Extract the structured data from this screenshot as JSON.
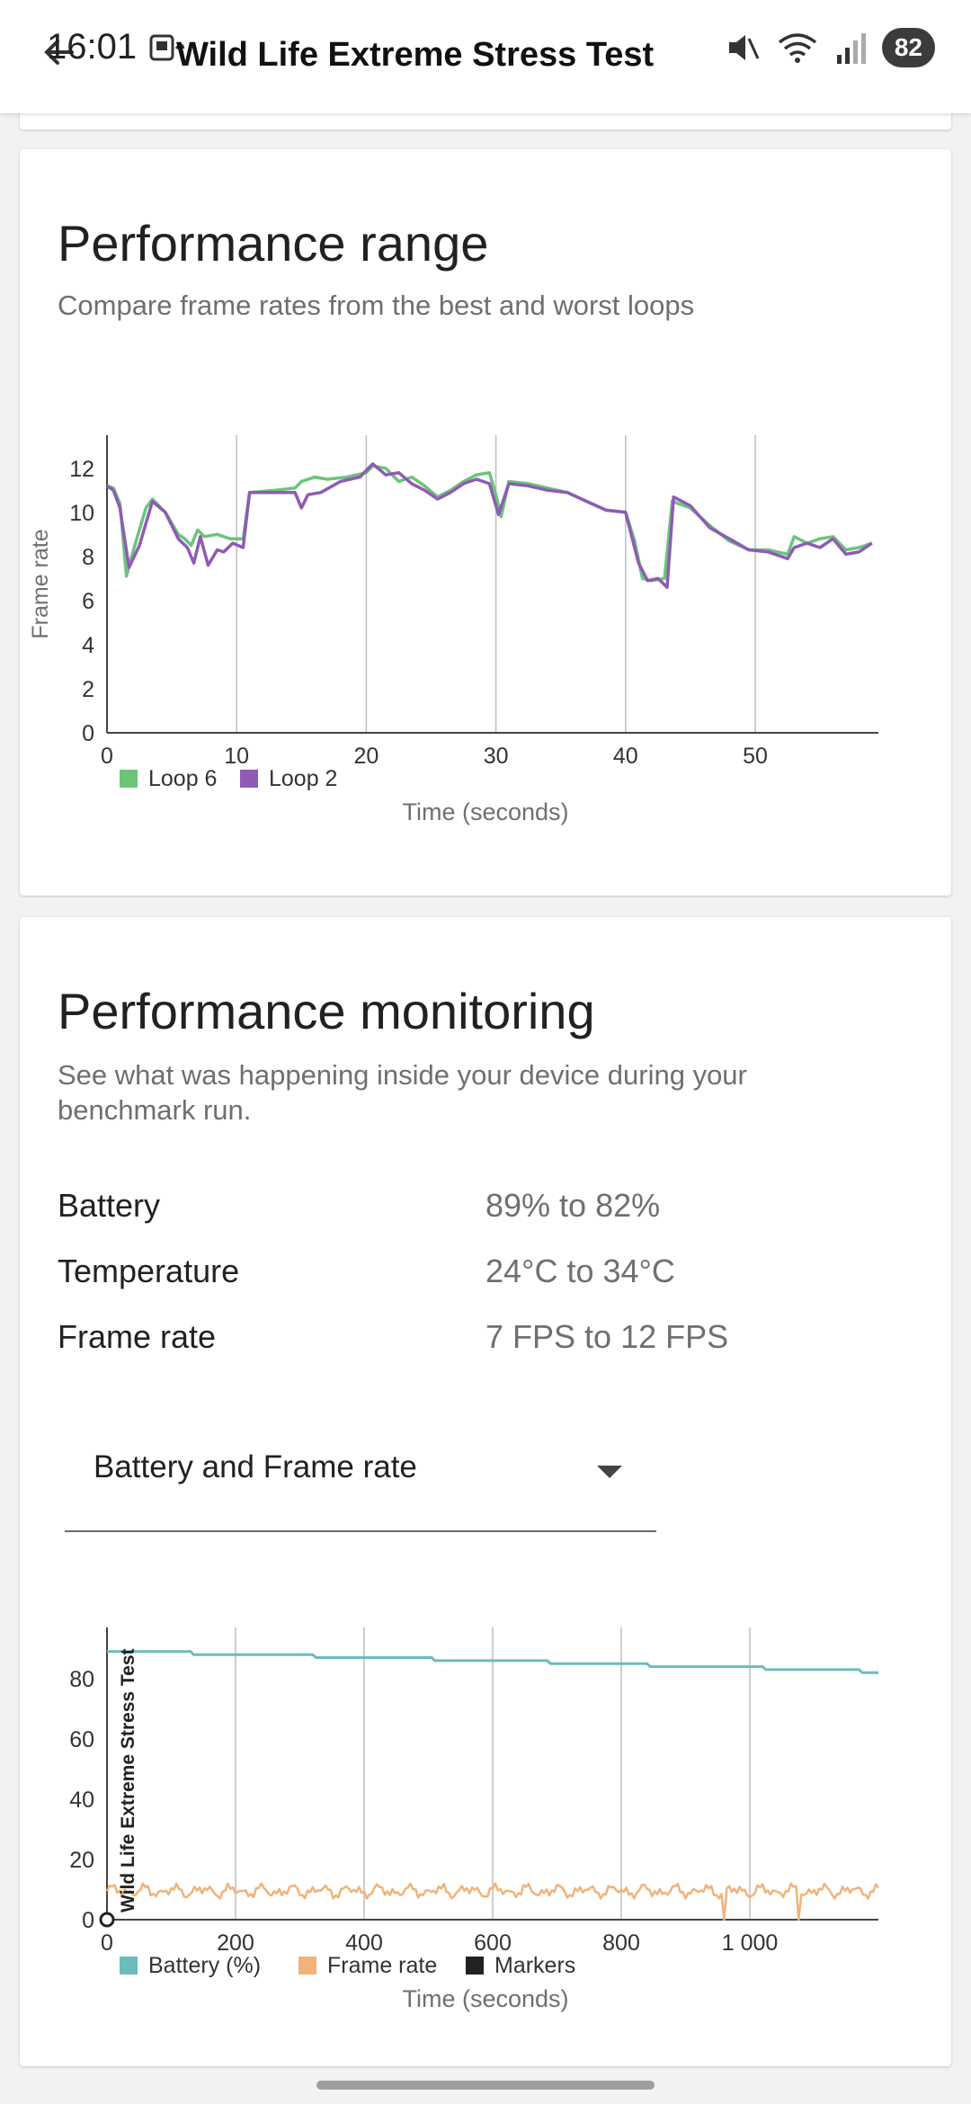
{
  "status_bar": {
    "time": "16:01",
    "battery": "82"
  },
  "app_bar": {
    "title": "Wild Life Extreme Stress Test"
  },
  "performance_range": {
    "title": "Performance range",
    "subtitle": "Compare frame rates from the best and worst loops"
  },
  "performance_monitoring": {
    "title": "Performance monitoring",
    "subtitle": "See what was happening inside your device during your benchmark run.",
    "stats": [
      {
        "label": "Battery",
        "value": "89% to 82%"
      },
      {
        "label": "Temperature",
        "value": "24°C to 34°C"
      },
      {
        "label": "Frame rate",
        "value": "7 FPS to 12 FPS"
      }
    ],
    "dropdown": {
      "selected": "Battery and Frame rate"
    }
  },
  "chart_data": [
    {
      "type": "line",
      "title": "",
      "xlabel": "Time (seconds)",
      "ylabel": "Frame rate",
      "xlim": [
        0,
        59.5
      ],
      "ylim": [
        0,
        13.5
      ],
      "x_ticks": [
        0,
        10,
        20,
        30,
        40,
        50
      ],
      "y_ticks": [
        0,
        2,
        4,
        6,
        8,
        10,
        12
      ],
      "grid": "vertical",
      "legend": "bottom-left",
      "series": [
        {
          "name": "Loop 6",
          "color": "#6cc47b",
          "points": [
            [
              0,
              11.2
            ],
            [
              0.5,
              11.1
            ],
            [
              1,
              10.4
            ],
            [
              1.5,
              7.1
            ],
            [
              2,
              8.2
            ],
            [
              3,
              10.2
            ],
            [
              3.5,
              10.6
            ],
            [
              4.5,
              10.0
            ],
            [
              5.5,
              9.0
            ],
            [
              6,
              8.8
            ],
            [
              6.5,
              8.5
            ],
            [
              7,
              9.2
            ],
            [
              7.5,
              8.9
            ],
            [
              8.5,
              9.0
            ],
            [
              9.5,
              8.8
            ],
            [
              10.5,
              8.8
            ],
            [
              11,
              10.9
            ],
            [
              13,
              11.0
            ],
            [
              14.5,
              11.1
            ],
            [
              15,
              11.4
            ],
            [
              16,
              11.6
            ],
            [
              17,
              11.5
            ],
            [
              18.5,
              11.6
            ],
            [
              20,
              11.8
            ],
            [
              20.5,
              12.1
            ],
            [
              21.5,
              12.0
            ],
            [
              22.5,
              11.4
            ],
            [
              23.5,
              11.6
            ],
            [
              24.5,
              11.2
            ],
            [
              25.5,
              10.7
            ],
            [
              26.5,
              11.0
            ],
            [
              27.5,
              11.4
            ],
            [
              28.5,
              11.7
            ],
            [
              29.5,
              11.8
            ],
            [
              30,
              10.8
            ],
            [
              30.4,
              9.8
            ],
            [
              31,
              11.4
            ],
            [
              32.5,
              11.3
            ],
            [
              34,
              11.1
            ],
            [
              35.5,
              10.9
            ],
            [
              37,
              10.5
            ],
            [
              38.5,
              10.1
            ],
            [
              40,
              10.0
            ],
            [
              40.7,
              8.7
            ],
            [
              41.3,
              7.0
            ],
            [
              42,
              6.9
            ],
            [
              43,
              7.0
            ],
            [
              43.6,
              10.5
            ],
            [
              45,
              10.2
            ],
            [
              46.5,
              9.4
            ],
            [
              48,
              8.7
            ],
            [
              49.5,
              8.3
            ],
            [
              51,
              8.3
            ],
            [
              52.5,
              8.1
            ],
            [
              53,
              8.9
            ],
            [
              54,
              8.6
            ],
            [
              55,
              8.8
            ],
            [
              56,
              8.9
            ],
            [
              57,
              8.3
            ],
            [
              58,
              8.4
            ],
            [
              59,
              8.6
            ]
          ]
        },
        {
          "name": "Loop 2",
          "color": "#8e5bb5",
          "points": [
            [
              0,
              11.2
            ],
            [
              0.5,
              11.0
            ],
            [
              1,
              10.2
            ],
            [
              1.7,
              7.5
            ],
            [
              2.5,
              8.5
            ],
            [
              3.5,
              10.5
            ],
            [
              4.5,
              10.0
            ],
            [
              5.5,
              8.8
            ],
            [
              6.2,
              8.4
            ],
            [
              6.7,
              7.7
            ],
            [
              7.2,
              8.9
            ],
            [
              7.8,
              7.6
            ],
            [
              8.5,
              8.3
            ],
            [
              9,
              8.2
            ],
            [
              9.7,
              8.6
            ],
            [
              10.5,
              8.4
            ],
            [
              11,
              10.9
            ],
            [
              13,
              10.9
            ],
            [
              14.5,
              10.9
            ],
            [
              15,
              10.2
            ],
            [
              15.5,
              10.8
            ],
            [
              16.5,
              10.9
            ],
            [
              18,
              11.4
            ],
            [
              19.5,
              11.6
            ],
            [
              20.5,
              12.2
            ],
            [
              21.5,
              11.7
            ],
            [
              22.5,
              11.8
            ],
            [
              23.5,
              11.3
            ],
            [
              24.5,
              11.0
            ],
            [
              25.5,
              10.6
            ],
            [
              26.5,
              10.9
            ],
            [
              27.5,
              11.3
            ],
            [
              28.5,
              11.5
            ],
            [
              29.5,
              11.3
            ],
            [
              30.2,
              9.9
            ],
            [
              31,
              11.3
            ],
            [
              32.5,
              11.2
            ],
            [
              34,
              11.0
            ],
            [
              35.5,
              10.9
            ],
            [
              37,
              10.5
            ],
            [
              38.5,
              10.1
            ],
            [
              40,
              10.0
            ],
            [
              41,
              7.7
            ],
            [
              41.7,
              6.9
            ],
            [
              42.5,
              7.0
            ],
            [
              43.2,
              6.6
            ],
            [
              43.7,
              10.7
            ],
            [
              45,
              10.3
            ],
            [
              46.5,
              9.3
            ],
            [
              48,
              8.8
            ],
            [
              49.5,
              8.3
            ],
            [
              51,
              8.2
            ],
            [
              52.5,
              7.9
            ],
            [
              53,
              8.4
            ],
            [
              54,
              8.6
            ],
            [
              55,
              8.4
            ],
            [
              56,
              8.8
            ],
            [
              57,
              8.1
            ],
            [
              58,
              8.2
            ],
            [
              59,
              8.6
            ]
          ]
        }
      ]
    },
    {
      "type": "line",
      "title": "",
      "xlabel": "Time (seconds)",
      "ylabel": "",
      "xlim": [
        0,
        1200
      ],
      "ylim": [
        0,
        97
      ],
      "x_ticks": [
        0,
        200,
        400,
        600,
        800,
        1000
      ],
      "x_tick_labels": [
        "0",
        "200",
        "400",
        "600",
        "800",
        "1 000"
      ],
      "y_ticks": [
        0,
        20,
        40,
        60,
        80
      ],
      "grid": "vertical",
      "legend": "bottom-left",
      "marker_label": "Wild Life Extreme Stress Test",
      "markers": [
        0
      ],
      "series": [
        {
          "name": "Battery (%)",
          "color": "#6cbcbc",
          "points": [
            [
              0,
              89
            ],
            [
              130,
              89
            ],
            [
              135,
              88
            ],
            [
              320,
              88
            ],
            [
              325,
              87
            ],
            [
              505,
              87
            ],
            [
              510,
              86
            ],
            [
              685,
              86
            ],
            [
              690,
              85
            ],
            [
              840,
              85
            ],
            [
              845,
              84
            ],
            [
              1020,
              84
            ],
            [
              1025,
              83
            ],
            [
              1170,
              83
            ],
            [
              1175,
              82
            ],
            [
              1200,
              82
            ]
          ]
        },
        {
          "name": "Frame rate",
          "color": "#f0b37a",
          "base_points": [
            [
              0,
              11
            ],
            [
              200,
              11
            ],
            [
              400,
              11
            ],
            [
              600,
              11
            ],
            [
              800,
              11
            ],
            [
              1000,
              11
            ],
            [
              1200,
              11
            ]
          ],
          "range": [
            7,
            12
          ],
          "dips": [
            [
              960,
              0
            ],
            [
              1075,
              0
            ]
          ]
        },
        {
          "name": "Markers",
          "color": "#222222"
        }
      ]
    }
  ]
}
